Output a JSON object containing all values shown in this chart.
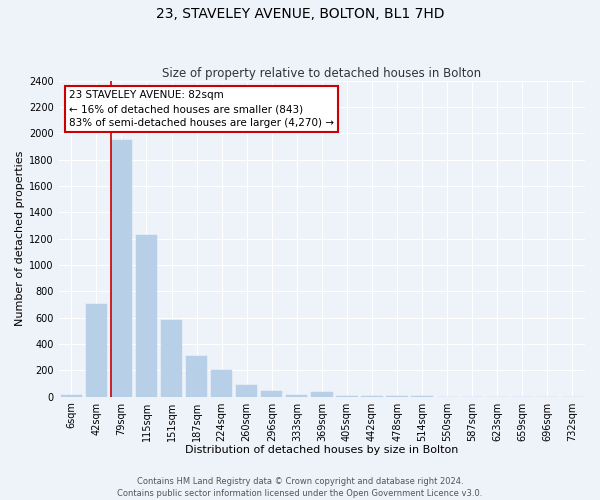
{
  "title": "23, STAVELEY AVENUE, BOLTON, BL1 7HD",
  "subtitle": "Size of property relative to detached houses in Bolton",
  "xlabel": "Distribution of detached houses by size in Bolton",
  "ylabel": "Number of detached properties",
  "bar_labels": [
    "6sqm",
    "42sqm",
    "79sqm",
    "115sqm",
    "151sqm",
    "187sqm",
    "224sqm",
    "260sqm",
    "296sqm",
    "333sqm",
    "369sqm",
    "405sqm",
    "442sqm",
    "478sqm",
    "514sqm",
    "550sqm",
    "587sqm",
    "623sqm",
    "659sqm",
    "696sqm",
    "732sqm"
  ],
  "bar_heights": [
    10,
    700,
    1950,
    1230,
    580,
    305,
    200,
    85,
    45,
    10,
    35,
    5,
    5,
    5,
    5,
    0,
    0,
    0,
    0,
    0,
    0
  ],
  "bar_color": "#b8cfe8",
  "bar_edgecolor": "#b8cfe8",
  "vline_color": "#cc0000",
  "vline_xindex": 2,
  "ylim": [
    0,
    2400
  ],
  "yticks": [
    0,
    200,
    400,
    600,
    800,
    1000,
    1200,
    1400,
    1600,
    1800,
    2000,
    2200,
    2400
  ],
  "annotation_title": "23 STAVELEY AVENUE: 82sqm",
  "annotation_line1": "← 16% of detached houses are smaller (843)",
  "annotation_line2": "83% of semi-detached houses are larger (4,270) →",
  "annotation_box_color": "#ffffff",
  "annotation_box_edgecolor": "#cc0000",
  "footer1": "Contains HM Land Registry data © Crown copyright and database right 2024.",
  "footer2": "Contains public sector information licensed under the Open Government Licence v3.0.",
  "background_color": "#eef2f9",
  "grid_color": "#ffffff",
  "title_fontsize": 10,
  "subtitle_fontsize": 8.5,
  "xlabel_fontsize": 8,
  "ylabel_fontsize": 8,
  "tick_fontsize": 7,
  "annotation_fontsize": 7.5,
  "footer_fontsize": 6
}
